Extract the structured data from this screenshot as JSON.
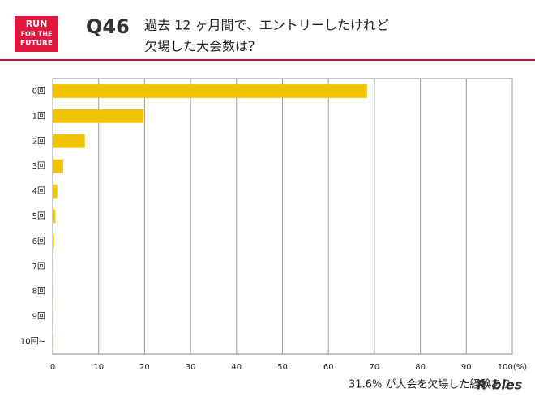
{
  "chart_data": {
    "type": "hbar",
    "brand": [
      "RUN",
      "FOR THE",
      "FUTURE"
    ],
    "question": "Q46",
    "title": [
      "過去 12 ヶ月間で、エントリーしたけれど",
      "欠場した大会数は？"
    ],
    "categories": [
      "0回",
      "1回",
      "2回",
      "3回",
      "4回",
      "5回",
      "6回",
      "7回",
      "8回",
      "9回",
      "10回~"
    ],
    "values": [
      68.4,
      19.8,
      7.0,
      2.3,
      1.0,
      0.6,
      0.3,
      0.1,
      0.2,
      0.1,
      0.2
    ],
    "color": "#f2c400",
    "xlim": [
      0,
      100
    ],
    "xticks": [
      0,
      10,
      20,
      30,
      40,
      50,
      60,
      70,
      80,
      90,
      {
        "value": 100,
        "label": "100(%)"
      }
    ],
    "grid": true,
    "annotation": "31.6% が大会を欠場した経験あり",
    "footer_logo": "R-bies"
  }
}
